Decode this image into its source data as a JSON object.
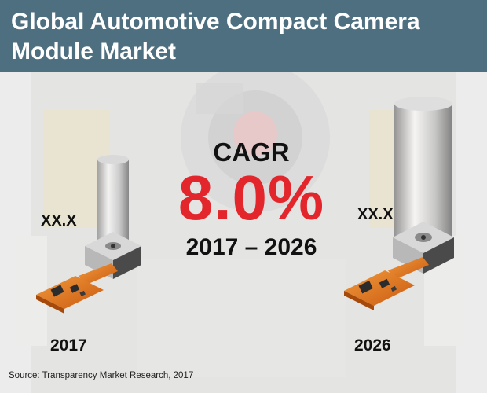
{
  "title": "Global Automotive Compact Camera Module Market",
  "cagr": {
    "label": "CAGR",
    "value": "8.0%",
    "period": "2017 – 2026"
  },
  "markers": [
    {
      "value": "XX.X",
      "year": "2017"
    },
    {
      "value": "XX.X",
      "year": "2026"
    }
  ],
  "source": "Source: Transparency Market Research, 2017",
  "colors": {
    "title_bar": "#4e6f80",
    "accent": "#e3262b",
    "pcb": "#e8731b"
  },
  "icons": [
    "camera-module-small-icon",
    "camera-module-large-icon",
    "background-camera-photo"
  ]
}
